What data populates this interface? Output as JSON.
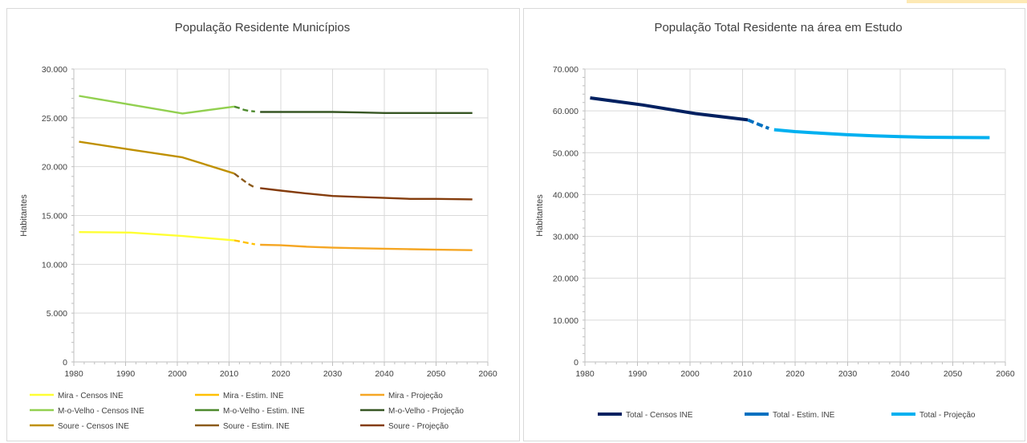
{
  "chart_data": [
    {
      "type": "line",
      "title": "População Residente Municípios",
      "xlabel": "",
      "ylabel": "Habitantes",
      "xlim": [
        1980,
        2060
      ],
      "ylim": [
        0,
        30000
      ],
      "x_ticks": [
        1980,
        1990,
        2000,
        2010,
        2020,
        2030,
        2040,
        2050,
        2060
      ],
      "y_ticks": [
        0,
        5000,
        10000,
        15000,
        20000,
        25000,
        30000
      ],
      "y_tick_labels": [
        "0",
        "5.000",
        "10.000",
        "15.000",
        "20.000",
        "25.000",
        "30.000"
      ],
      "grid": true,
      "legend_position": "bottom",
      "series": [
        {
          "name": "Mira - Censos INE",
          "color": "#ffff33",
          "style": "solid",
          "points": [
            [
              1981,
              13300
            ],
            [
              1991,
              13250
            ],
            [
              2001,
              12900
            ],
            [
              2011,
              12450
            ]
          ]
        },
        {
          "name": "Mira - Estim. INE",
          "color": "#ffc000",
          "style": "dashed",
          "points": [
            [
              2011,
              12450
            ],
            [
              2012,
              12350
            ],
            [
              2013,
              12250
            ],
            [
              2014,
              12150
            ],
            [
              2015,
              12050
            ]
          ]
        },
        {
          "name": "Mira - Projeção",
          "color": "#f5a623",
          "style": "solid",
          "points": [
            [
              2016,
              12000
            ],
            [
              2020,
              11950
            ],
            [
              2025,
              11800
            ],
            [
              2030,
              11700
            ],
            [
              2035,
              11650
            ],
            [
              2040,
              11600
            ],
            [
              2045,
              11550
            ],
            [
              2050,
              11500
            ],
            [
              2057,
              11450
            ]
          ]
        },
        {
          "name": "M-o-Velho - Censos INE",
          "color": "#92d050",
          "style": "solid",
          "points": [
            [
              1981,
              27250
            ],
            [
              1991,
              26350
            ],
            [
              2001,
              25450
            ],
            [
              2011,
              26150
            ]
          ]
        },
        {
          "name": "M-o-Velho - Estim. INE",
          "color": "#4e8a2e",
          "style": "dashed",
          "points": [
            [
              2011,
              26150
            ],
            [
              2012,
              26000
            ],
            [
              2013,
              25800
            ],
            [
              2014,
              25700
            ],
            [
              2015,
              25650
            ]
          ]
        },
        {
          "name": "M-o-Velho - Projeção",
          "color": "#375623",
          "style": "solid",
          "points": [
            [
              2016,
              25600
            ],
            [
              2020,
              25600
            ],
            [
              2025,
              25600
            ],
            [
              2030,
              25600
            ],
            [
              2035,
              25550
            ],
            [
              2040,
              25500
            ],
            [
              2045,
              25500
            ],
            [
              2050,
              25500
            ],
            [
              2057,
              25500
            ]
          ]
        },
        {
          "name": "Soure - Censos INE",
          "color": "#bf9000",
          "style": "solid",
          "points": [
            [
              1981,
              22550
            ],
            [
              1991,
              21750
            ],
            [
              2001,
              20950
            ],
            [
              2011,
              19300
            ]
          ]
        },
        {
          "name": "Soure - Estim. INE",
          "color": "#8b5a1a",
          "style": "dashed",
          "points": [
            [
              2011,
              19300
            ],
            [
              2012,
              18900
            ],
            [
              2013,
              18500
            ],
            [
              2014,
              18150
            ],
            [
              2015,
              17850
            ]
          ]
        },
        {
          "name": "Soure - Projeção",
          "color": "#843c0c",
          "style": "solid",
          "points": [
            [
              2016,
              17800
            ],
            [
              2020,
              17550
            ],
            [
              2025,
              17250
            ],
            [
              2030,
              17000
            ],
            [
              2035,
              16900
            ],
            [
              2040,
              16800
            ],
            [
              2045,
              16700
            ],
            [
              2050,
              16700
            ],
            [
              2057,
              16650
            ]
          ]
        }
      ]
    },
    {
      "type": "line",
      "title": "População Total Residente na área em Estudo",
      "xlabel": "",
      "ylabel": "Habitantes",
      "xlim": [
        1980,
        2060
      ],
      "ylim": [
        0,
        70000
      ],
      "x_ticks": [
        1980,
        1990,
        2000,
        2010,
        2020,
        2030,
        2040,
        2050,
        2060
      ],
      "y_ticks": [
        0,
        10000,
        20000,
        30000,
        40000,
        50000,
        60000,
        70000
      ],
      "y_tick_labels": [
        "0",
        "10.000",
        "20.000",
        "30.000",
        "40.000",
        "50.000",
        "60.000",
        "70.000"
      ],
      "grid": true,
      "legend_position": "bottom",
      "series": [
        {
          "name": "Total - Censos INE",
          "color": "#002060",
          "style": "solid",
          "points": [
            [
              1981,
              63100
            ],
            [
              1991,
              61400
            ],
            [
              2001,
              59350
            ],
            [
              2011,
              57850
            ]
          ]
        },
        {
          "name": "Total - Estim. INE",
          "color": "#0070c0",
          "style": "dashed",
          "points": [
            [
              2011,
              57850
            ],
            [
              2012,
              57300
            ],
            [
              2013,
              56800
            ],
            [
              2014,
              56300
            ],
            [
              2015,
              55800
            ]
          ]
        },
        {
          "name": "Total - Projeção",
          "color": "#00b0f0",
          "style": "solid",
          "points": [
            [
              2016,
              55500
            ],
            [
              2020,
              55050
            ],
            [
              2025,
              54650
            ],
            [
              2030,
              54300
            ],
            [
              2035,
              54050
            ],
            [
              2040,
              53850
            ],
            [
              2045,
              53700
            ],
            [
              2050,
              53650
            ],
            [
              2057,
              53600
            ]
          ]
        }
      ]
    }
  ]
}
